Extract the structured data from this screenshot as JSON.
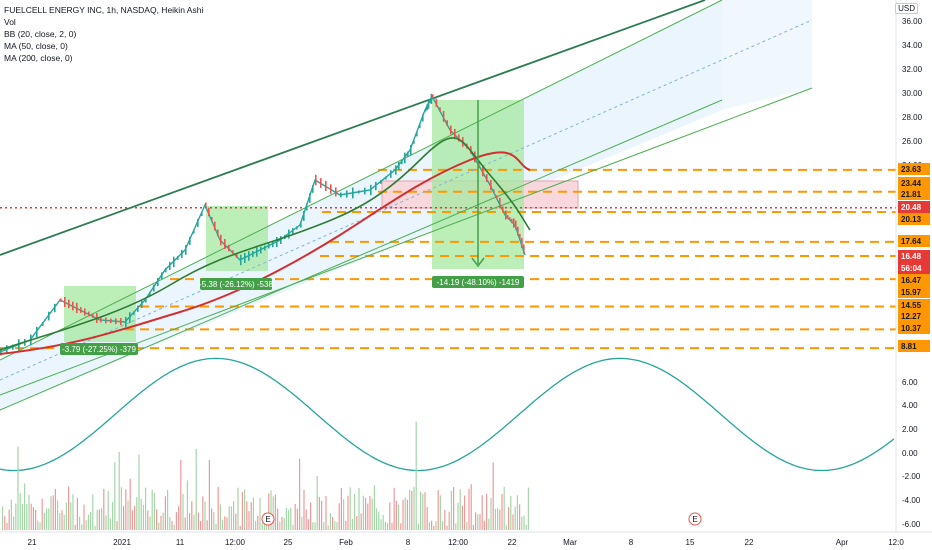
{
  "legend": {
    "title": "FUELCELL ENERGY INC, 1h, NASDAQ, Heikin Ashi",
    "vol": "Vol",
    "bb": "BB (20, close, 2, 0)",
    "ma50": "MA (50, close, 0)",
    "ma200": "MA (200, close, 0)"
  },
  "currency": "USD",
  "colors": {
    "orange": "#ff9800",
    "red": "#e53935",
    "green": "#4caf50",
    "wave": "#26a69a",
    "channel_fill": "#e3f2fd",
    "box_fill": "#9ee89a",
    "zone_fill": "#f8d7dd"
  },
  "chart_data": {
    "type": "line",
    "price_scale": {
      "ticks": [
        "36.00",
        "34.00",
        "32.00",
        "30.00",
        "28.00",
        "26.00",
        "24.00",
        "23.63",
        "23.44",
        "21.81",
        "20.48",
        "20.13",
        "17.64",
        "16.48",
        "56:04",
        "16.47",
        "15.97",
        "14.55",
        "12.27",
        "10.37",
        "8.81",
        "6.00",
        "4.00",
        "2.00",
        "0.00",
        "-2.00",
        "-4.00",
        "-6.00"
      ],
      "current_price": "20.48",
      "last_price": "16.48",
      "countdown": "56:04",
      "tagged_levels": [
        "23.63",
        "23.44",
        "21.81",
        "20.48",
        "20.13",
        "17.64",
        "16.48",
        "16.47",
        "15.97",
        "14.55",
        "12.27",
        "10.37",
        "8.81"
      ]
    },
    "time_axis": [
      "21",
      "2021",
      "11",
      "12:00",
      "25",
      "Feb",
      "8",
      "12:00",
      "22",
      "Mar",
      "8",
      "15",
      "22",
      "Apr",
      "12:0"
    ],
    "support_resistance_levels": [
      23.63,
      21.81,
      20.48,
      20.13,
      17.64,
      16.47,
      14.55,
      12.27,
      10.37,
      8.81
    ],
    "price_range_boxes": [
      {
        "label": "-3.79 (-27.25%) -379"
      },
      {
        "label": "-5.38 (-26.12%) -538"
      },
      {
        "label": "-14.19 (-48.10%) -1419"
      }
    ],
    "earnings_markers": [
      "E",
      "E"
    ],
    "oscillator": {
      "name": "sine wave",
      "range": [
        -6,
        8
      ]
    }
  }
}
